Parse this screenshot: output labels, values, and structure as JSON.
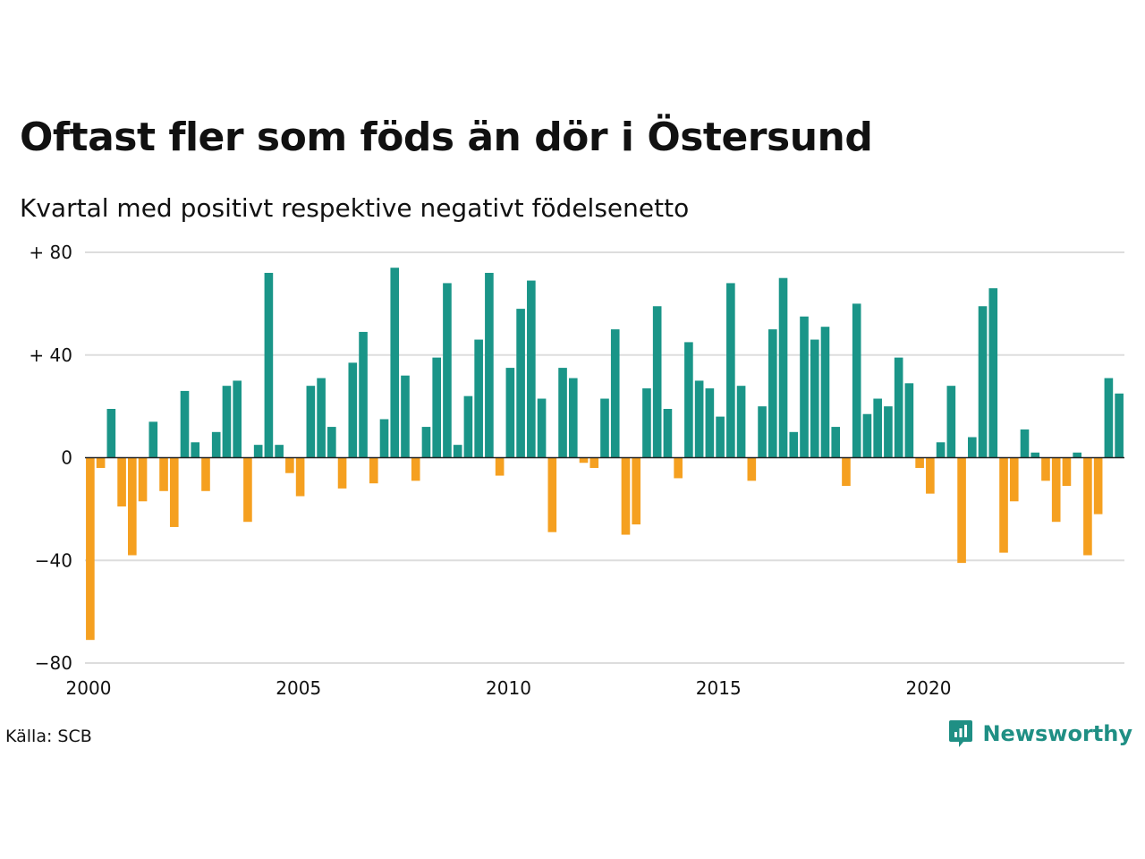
{
  "title": "Oftast fler som föds än dör i Östersund",
  "subtitle": "Kvartal med positivt respektive negativt födelsenetto",
  "source": "Källa: SCB",
  "brand": {
    "name": "Newsworthy",
    "icon": "newsworthy-logo-icon",
    "color": "#1f8f84"
  },
  "colors": {
    "positive": "#1a9588",
    "negative": "#f5a020",
    "grid": "#dddddd",
    "zero": "#222222"
  },
  "chart_data": {
    "type": "bar",
    "x_start": "2000 Q1",
    "frequency": "quarterly",
    "values": [
      -71,
      -4,
      19,
      -19,
      -38,
      -17,
      14,
      -13,
      -27,
      26,
      6,
      -13,
      10,
      28,
      30,
      -25,
      5,
      72,
      5,
      -6,
      -15,
      28,
      31,
      12,
      -12,
      37,
      49,
      -10,
      15,
      74,
      32,
      -9,
      12,
      39,
      68,
      5,
      24,
      46,
      72,
      -7,
      35,
      58,
      69,
      23,
      -29,
      35,
      31,
      -2,
      -4,
      23,
      50,
      -30,
      -26,
      27,
      59,
      19,
      -8,
      45,
      30,
      27,
      16,
      68,
      28,
      -9,
      20,
      50,
      70,
      10,
      55,
      46,
      51,
      12,
      -11,
      60,
      17,
      23,
      20,
      39,
      29,
      -4,
      -14,
      6,
      28,
      -41,
      8,
      59,
      66,
      -37,
      -17,
      11,
      2,
      -9,
      -25,
      -11,
      2,
      -38,
      -22,
      31,
      25
    ],
    "x_ticks": [
      {
        "year": 2000,
        "label": "2000"
      },
      {
        "year": 2005,
        "label": "2005"
      },
      {
        "year": 2010,
        "label": "2010"
      },
      {
        "year": 2015,
        "label": "2015"
      },
      {
        "year": 2020,
        "label": "2020"
      }
    ],
    "y_ticks": [
      {
        "value": 80,
        "label": "+ 80"
      },
      {
        "value": 40,
        "label": "+ 40"
      },
      {
        "value": 0,
        "label": "0"
      },
      {
        "value": -40,
        "label": "−40"
      },
      {
        "value": -80,
        "label": "−80"
      }
    ],
    "ylim": [
      -80,
      80
    ],
    "grid": true
  }
}
